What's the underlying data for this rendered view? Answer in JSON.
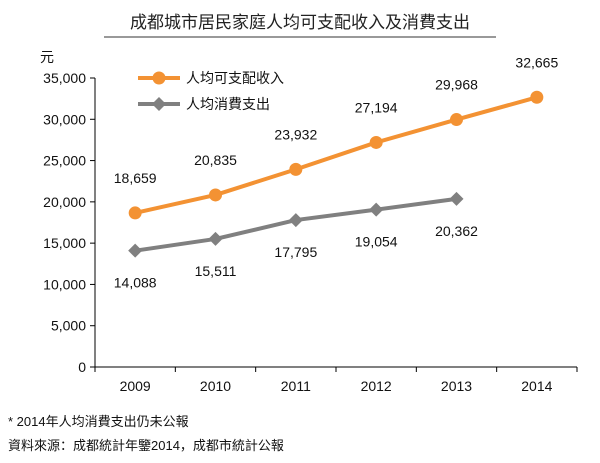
{
  "chart_data": {
    "type": "line",
    "title": "成都城市居民家庭人均可支配收入及消費支出",
    "ylabel": "元",
    "xlabel": "",
    "categories": [
      "2009",
      "2010",
      "2011",
      "2012",
      "2013",
      "2014"
    ],
    "ylim": [
      0,
      35000
    ],
    "yticks": [
      0,
      5000,
      10000,
      15000,
      20000,
      25000,
      30000,
      35000
    ],
    "ytick_labels": [
      "0",
      "5,000",
      "10,000",
      "15,000",
      "20,000",
      "25,000",
      "30,000",
      "35,000"
    ],
    "grid": false,
    "legend_position": "top-left",
    "series": [
      {
        "name": "人均可支配收入",
        "color": "#F39233",
        "marker": "circle",
        "label_position": "above",
        "values": [
          18659,
          20835,
          23932,
          27194,
          29968,
          32665
        ],
        "labels": [
          "18,659",
          "20,835",
          "23,932",
          "27,194",
          "29,968",
          "32,665"
        ]
      },
      {
        "name": "人均消費支出",
        "color": "#808080",
        "marker": "diamond",
        "label_position": "below",
        "values": [
          14088,
          15511,
          17795,
          19054,
          20362,
          null
        ],
        "labels": [
          "14,088",
          "15,511",
          "17,795",
          "19,054",
          "20,362",
          null
        ]
      }
    ]
  },
  "footnotes": {
    "note": "* 2014年人均消費支出仍未公報",
    "source": "資料來源：成都統計年鑒2014，成都市統計公報"
  }
}
